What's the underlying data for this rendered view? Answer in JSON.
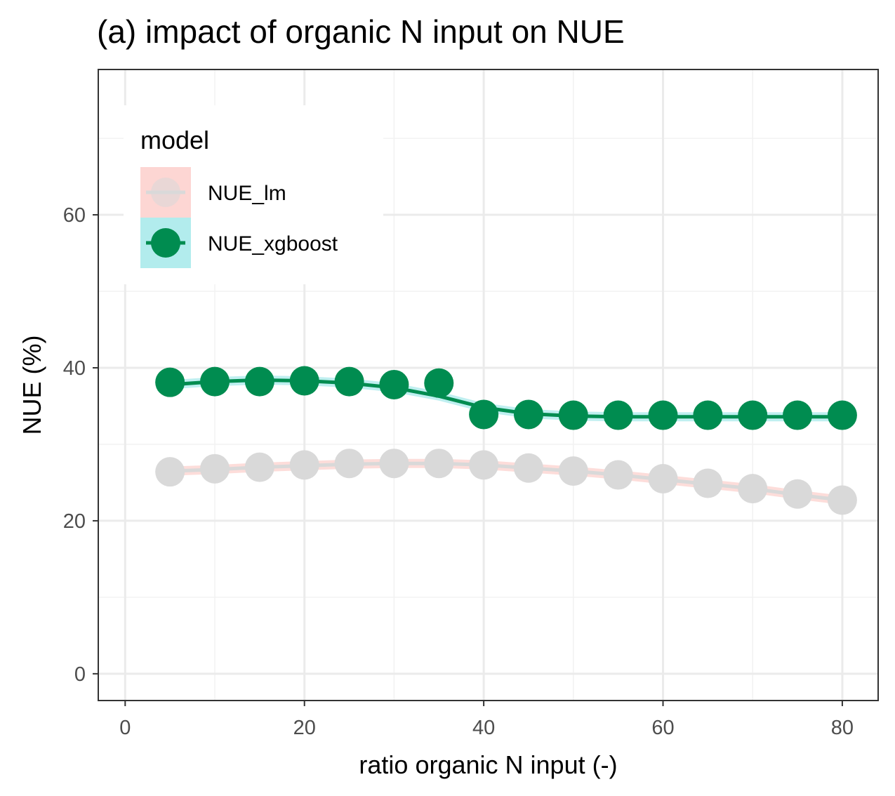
{
  "chart_data": {
    "type": "line",
    "title": "(a) impact of organic N input on NUE",
    "xlabel": "ratio organic N input (-)",
    "ylabel": "NUE (%)",
    "xlim": [
      -3,
      84
    ],
    "ylim": [
      -3.5,
      79
    ],
    "x_ticks": [
      0,
      20,
      40,
      60,
      80
    ],
    "y_ticks": [
      0,
      20,
      40,
      60
    ],
    "x_minor": [
      10,
      30,
      50,
      70
    ],
    "y_minor": [
      10,
      30,
      50,
      70
    ],
    "grid": true,
    "legend": {
      "title": "model",
      "position": "top-left",
      "entries": [
        "NUE_lm",
        "NUE_xgboost"
      ]
    },
    "x": [
      5,
      10,
      15,
      20,
      25,
      30,
      35,
      40,
      45,
      50,
      55,
      60,
      65,
      70,
      75,
      80
    ],
    "series": [
      {
        "name": "NUE_lm",
        "color": "#d9d9d9",
        "ribbon_color": "#f8766d",
        "values": [
          26.4,
          26.8,
          27.0,
          27.3,
          27.5,
          27.5,
          27.5,
          27.3,
          26.9,
          26.5,
          26.0,
          25.5,
          24.9,
          24.2,
          23.5,
          22.7
        ],
        "smooth": [
          26.5,
          26.7,
          27.0,
          27.2,
          27.4,
          27.5,
          27.5,
          27.3,
          26.9,
          26.5,
          26.0,
          25.4,
          24.8,
          24.2,
          23.4,
          22.7
        ]
      },
      {
        "name": "NUE_xgboost",
        "color": "#008c50",
        "ribbon_color": "#00bfc4",
        "values": [
          38.1,
          38.2,
          38.2,
          38.3,
          38.2,
          37.8,
          38.0,
          33.9,
          33.9,
          33.8,
          33.8,
          33.8,
          33.8,
          33.8,
          33.8,
          33.8
        ],
        "smooth": [
          37.8,
          38.2,
          38.4,
          38.3,
          38.0,
          37.4,
          36.3,
          34.8,
          34.0,
          33.7,
          33.6,
          33.6,
          33.6,
          33.6,
          33.6,
          33.6
        ]
      }
    ]
  }
}
